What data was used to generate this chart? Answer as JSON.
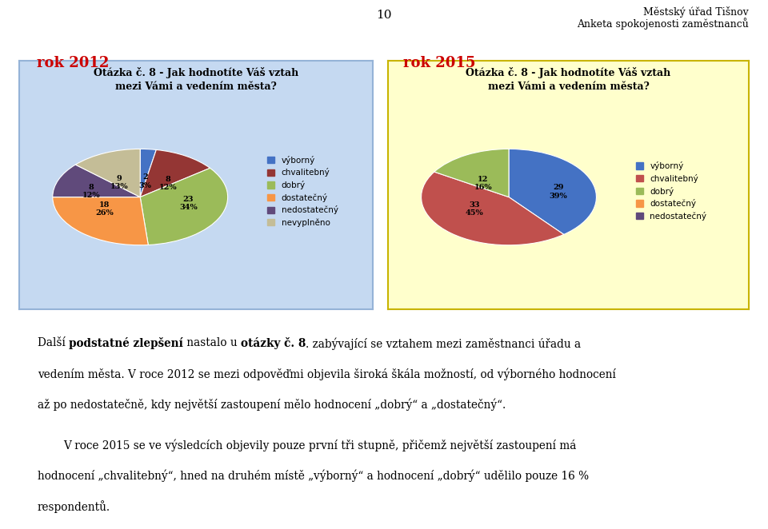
{
  "title_left": "rok 2012",
  "title_right": "rok 2015",
  "title_color": "#cc0000",
  "header_right1": "Městský úřad Tišnov",
  "header_right2": "Anketa spokojenosti zaměstnanců",
  "page_number": "10",
  "chart_title_line1": "Otázka č. 8 - Jak hodnotíte Váš vztah",
  "chart_title_line2": "mezi Vámi a vedením města?",
  "bg_left": "#c5d9f1",
  "bg_right": "#ffffcc",
  "border_left": "#95b3d7",
  "border_right": "#c8b400",
  "pie2012_values": [
    2,
    8,
    23,
    18,
    8,
    9
  ],
  "pie2012_labels": [
    "výborný",
    "chvalitebný",
    "dobrý",
    "dostatečný",
    "nedostatečný",
    "nevyplněno"
  ],
  "pie2012_counts": [
    2,
    8,
    23,
    18,
    8,
    9
  ],
  "pie2012_pcts": [
    "3%",
    "12%",
    "34%",
    "26%",
    "12%",
    "13%"
  ],
  "pie2012_colors": [
    "#4472c4",
    "#943634",
    "#9bbb59",
    "#f79646",
    "#604a7b",
    "#c4bd97"
  ],
  "pie2015_values": [
    29,
    33,
    12
  ],
  "pie2015_all_labels": [
    "výborný",
    "chvalitebný",
    "dobrý",
    "dostatečný",
    "nedostatečný"
  ],
  "pie2015_counts": [
    29,
    33,
    12
  ],
  "pie2015_pcts": [
    "39%",
    "45%",
    "16%"
  ],
  "pie2015_colors": [
    "#4472c4",
    "#c0504d",
    "#9bbb59"
  ],
  "pie2015_legend_colors": [
    "#4472c4",
    "#c0504d",
    "#9bbb59",
    "#f79646",
    "#604a7b"
  ],
  "body_line1a": "Další ",
  "body_line1b": "podstatné zlepšení",
  "body_line1c": " nastalo u ",
  "body_line1d": "otázky č. 8",
  "body_line1e": ". zabývající se vztahem mezi zaměstnanci úřadu a",
  "body_line2": "vedením města. V roce 2012 se mezi odpověďmi objevila široká škála možností, od výborného hodnocení",
  "body_line3": "až po nedostatečně, kdy největší zastoupení mělo hodnocení „dobrý“ a „dostatečný“.",
  "body_line4": "V roce 2015 se ve výsledcích objevily pouze první tři stupně, přičemž největší zastoupení má",
  "body_line5": "hodnocení „chvalitebný“, hned na druhém místě „výborný“ a hodnocení „dobrý“ udělilo pouze 16 %",
  "body_line6": "respondentů."
}
